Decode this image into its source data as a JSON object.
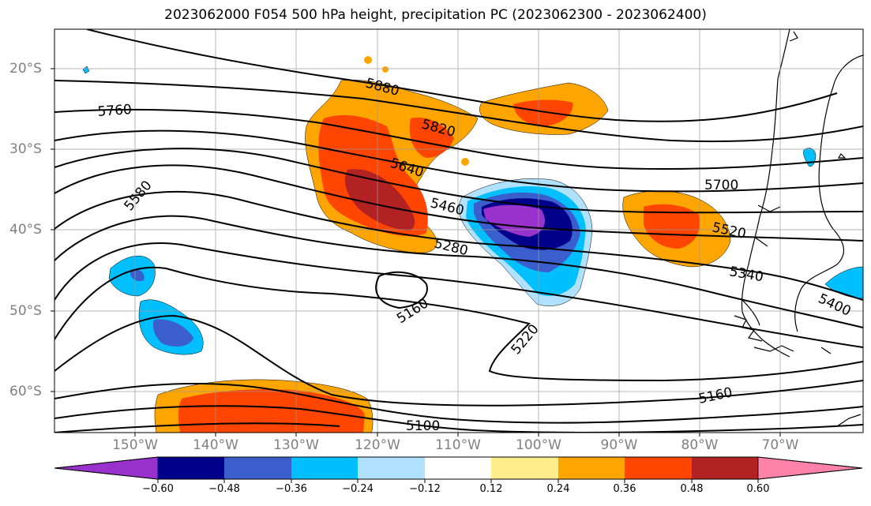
{
  "title": "2023062000 F054 500 hPa height, precipitation PC (2023062300 - 2023062400)",
  "lat_labels": [
    "20°S",
    "30°S",
    "40°S",
    "50°S",
    "60°S"
  ],
  "lon_labels": [
    "150°W",
    "140°W",
    "130°W",
    "120°W",
    "110°W",
    "100°W",
    "90°W",
    "80°W",
    "70°W"
  ],
  "contour_labels": [
    "5880",
    "5820",
    "5760",
    "5640",
    "5580",
    "5460",
    "5700",
    "5520",
    "5280",
    "5340",
    "5160",
    "5400",
    "5220",
    "5160",
    "5100"
  ],
  "colorbar": {
    "ticks": [
      "−0.60",
      "−0.48",
      "−0.36",
      "−0.24",
      "−0.12",
      "0.12",
      "0.24",
      "0.36",
      "0.48",
      "0.60"
    ],
    "colors": [
      "#9932cc",
      "#00008b",
      "#3a5fcd",
      "#00bfff",
      "#b0e2ff",
      "#ffffff",
      "#ffec8b",
      "#ffa500",
      "#ff4500",
      "#b22222",
      "#ff82ab"
    ]
  }
}
